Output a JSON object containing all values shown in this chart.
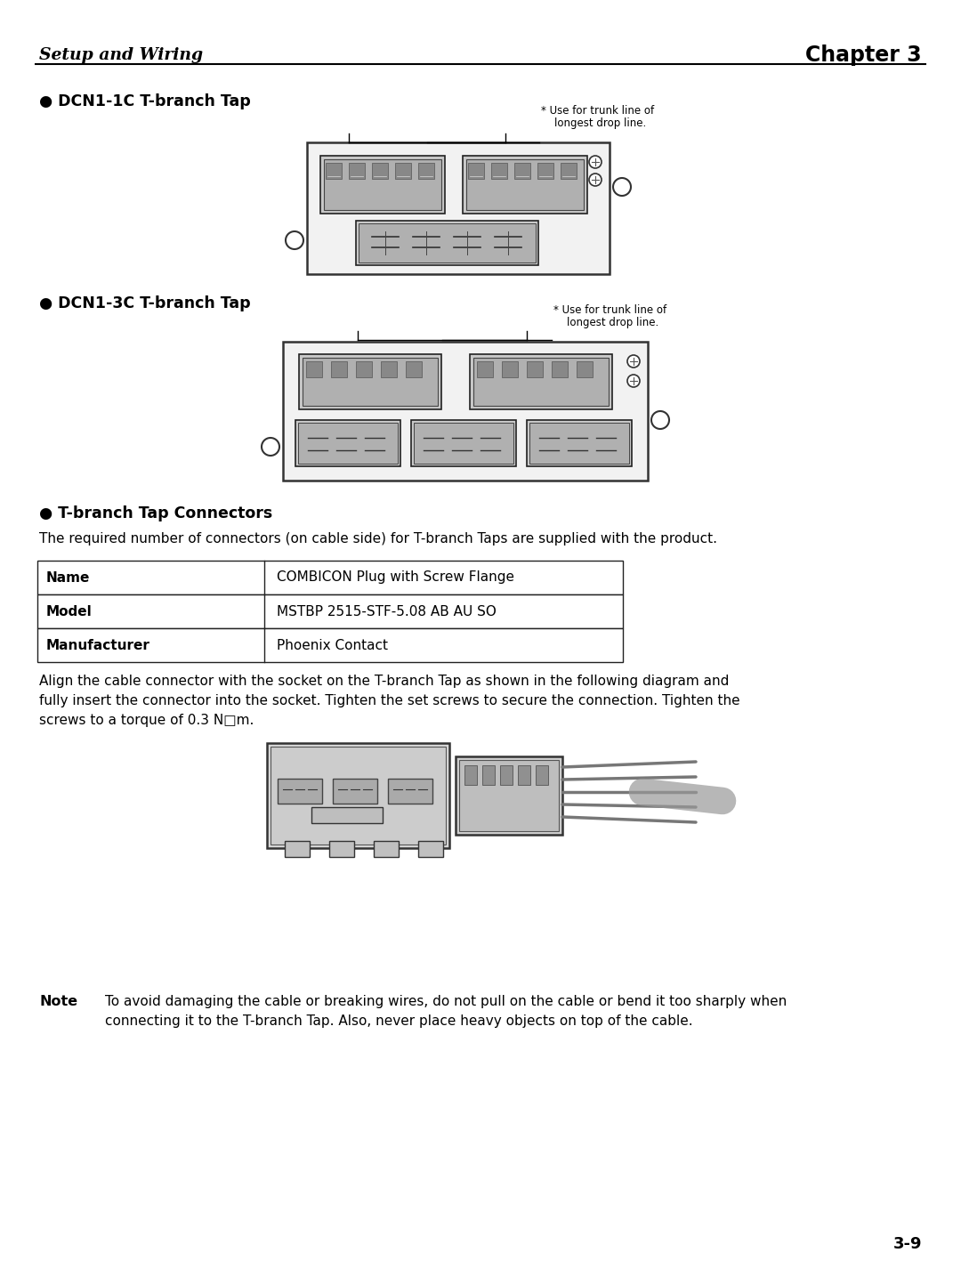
{
  "bg_color": "#ffffff",
  "header_left": "Setup and Wiring",
  "header_right": "Chapter 3",
  "page_number": "3-9",
  "section1_title": "● DCN1-1C T-branch Tap",
  "section2_title": "● DCN1-3C T-branch Tap",
  "section3_title": "● T-branch Tap Connectors",
  "note_label": "Note",
  "note_text1": "To avoid damaging the cable or breaking wires, do not pull on the cable or bend it too sharply when",
  "note_text2": "connecting it to the T-branch Tap. Also, never place heavy objects on top of the cable.",
  "trunk_note1": "* Use for trunk line of",
  "trunk_note2": "    longest drop line.",
  "table_col1": [
    "Name",
    "Model",
    "Manufacturer"
  ],
  "table_col2": [
    "COMBICON Plug with Screw Flange",
    "MSTBP 2515-STF-5.08 AB AU SO",
    "Phoenix Contact"
  ],
  "para1": "The required number of connectors (on cable side) for T-branch Taps are supplied with the product.",
  "para2_line1": "Align the cable connector with the socket on the T-branch Tap as shown in the following diagram and",
  "para2_line2": "fully insert the connector into the socket. Tighten the set screws to secure the connection. Tighten the",
  "para2_line3": "screws to a torque of 0.3 N□m."
}
